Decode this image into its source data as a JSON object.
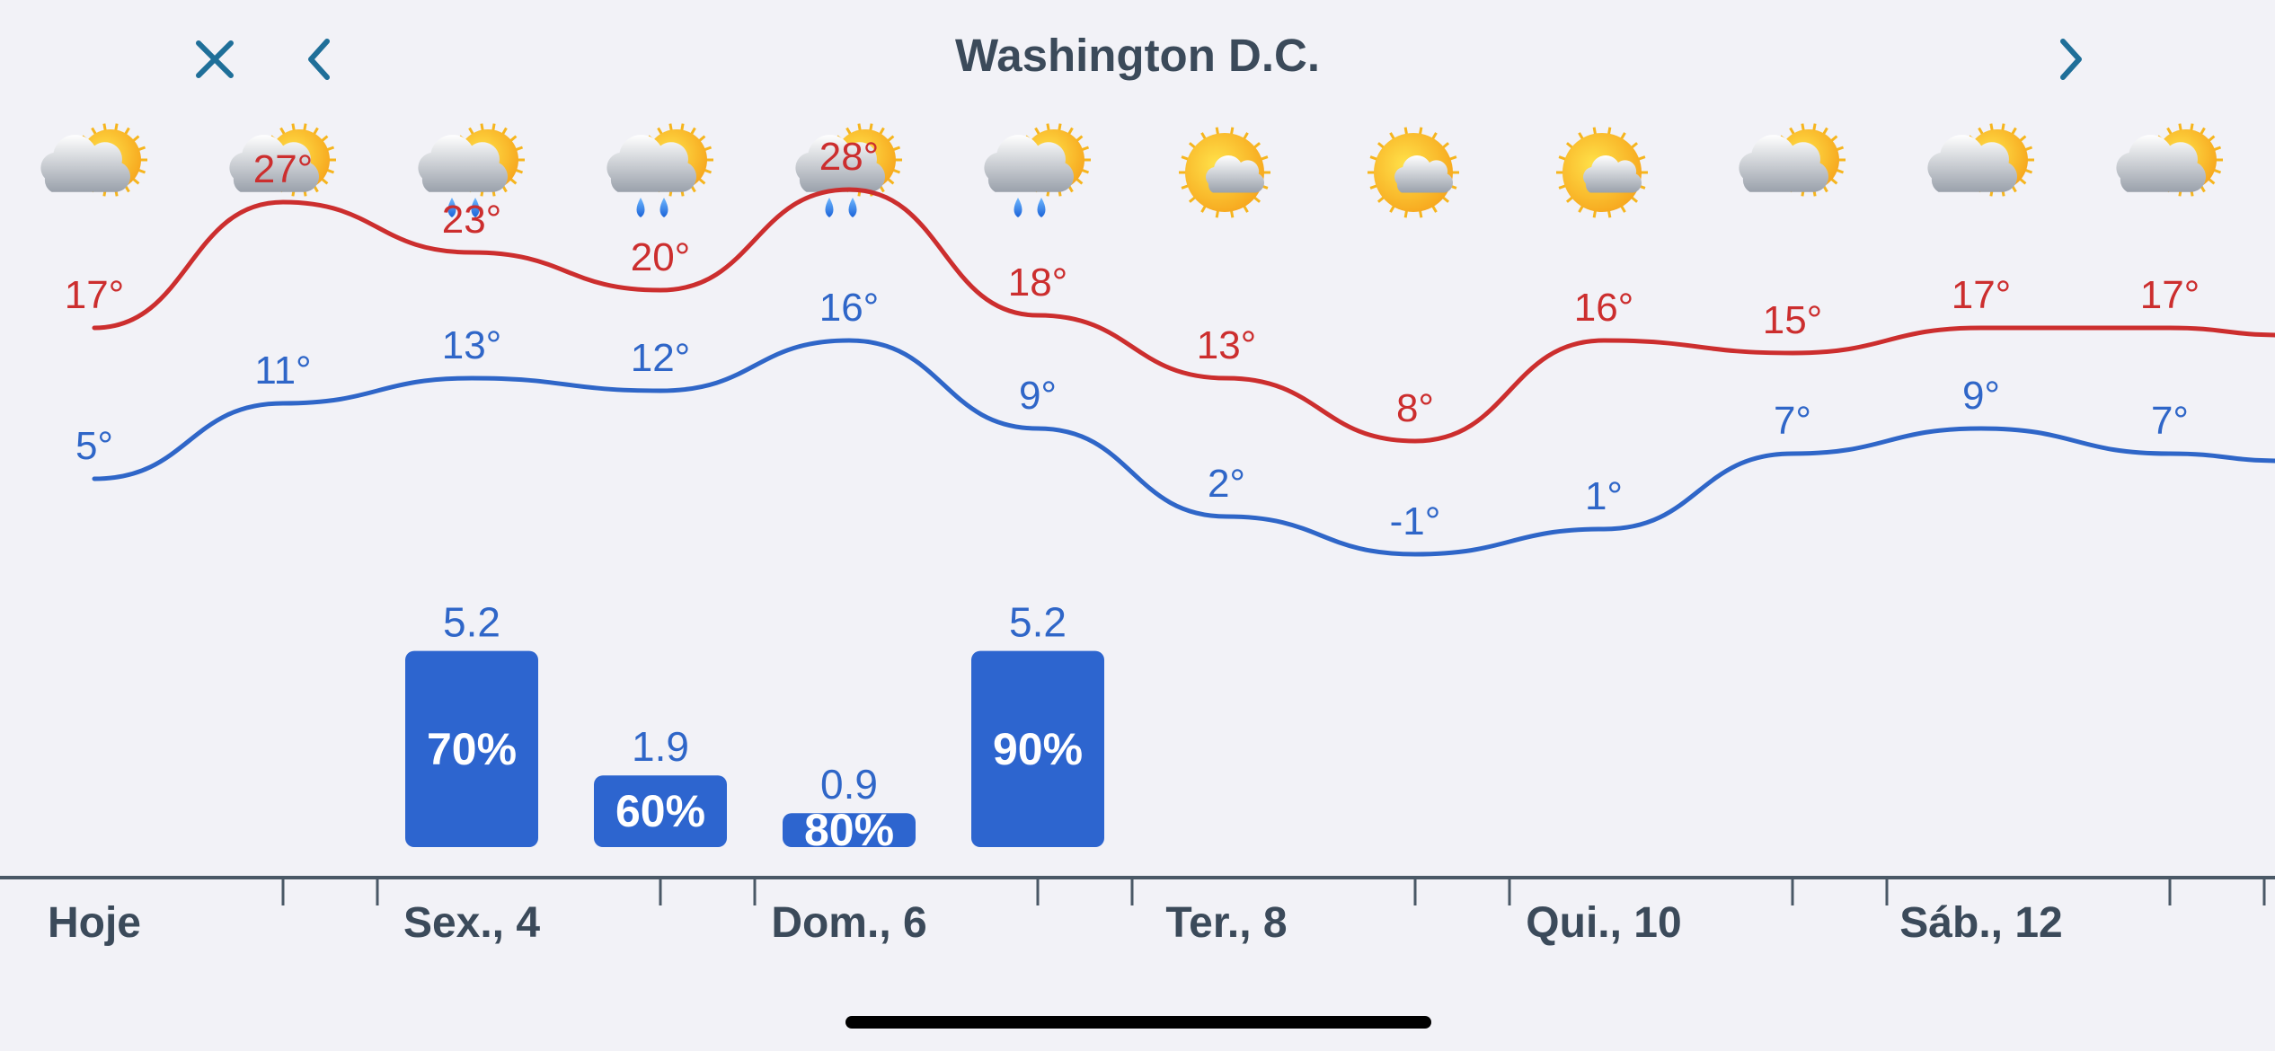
{
  "header": {
    "title": "Washington D.C.",
    "close_icon": "close-icon",
    "prev_icon": "chevron-left-icon",
    "next_icon": "chevron-right-icon"
  },
  "colors": {
    "background": "#f2f2f7",
    "accent": "#1f6f99",
    "high": "#cc2e2e",
    "low": "#2f66c8",
    "bar": "#2d65cf",
    "axis": "#4a5866",
    "day_label": "#3b4a5a"
  },
  "chart_data": {
    "type": "line",
    "icons": [
      "partly-cloudy-icon",
      "partly-cloudy-icon",
      "rain-icon",
      "rain-icon",
      "rain-icon",
      "rain-icon",
      "mostly-sunny-icon",
      "mostly-sunny-icon",
      "mostly-sunny-icon",
      "partly-cloudy-icon",
      "partly-cloudy-icon",
      "partly-cloudy-icon"
    ],
    "series": [
      {
        "key": "high",
        "values": [
          17,
          27,
          23,
          20,
          28,
          18,
          13,
          8,
          16,
          15,
          17,
          17
        ]
      },
      {
        "key": "low",
        "values": [
          5,
          11,
          13,
          12,
          16,
          9,
          2,
          -1,
          1,
          7,
          9,
          7
        ]
      }
    ],
    "high_labels": [
      "17°",
      "27°",
      "23°",
      "20°",
      "28°",
      "18°",
      "13°",
      "8°",
      "16°",
      "15°",
      "17°",
      "17°"
    ],
    "low_labels": [
      "5°",
      "11°",
      "13°",
      "12°",
      "16°",
      "9°",
      "2°",
      "-1°",
      "1°",
      "7°",
      "9°",
      "7°"
    ],
    "precipitation": [
      {
        "slot": 2,
        "amount": 5.2,
        "amount_label": "5.2",
        "chance_label": "70%"
      },
      {
        "slot": 3,
        "amount": 1.9,
        "amount_label": "1.9",
        "chance_label": "60%"
      },
      {
        "slot": 4,
        "amount": 0.9,
        "amount_label": "0.9",
        "chance_label": "80%"
      },
      {
        "slot": 5,
        "amount": 5.2,
        "amount_label": "5.2",
        "chance_label": "90%"
      }
    ],
    "day_labels": [
      {
        "slot": 0,
        "text": "Hoje"
      },
      {
        "slot": 2,
        "text": "Sex., 4"
      },
      {
        "slot": 4,
        "text": "Dom., 6"
      },
      {
        "slot": 6,
        "text": "Ter., 8"
      },
      {
        "slot": 8,
        "text": "Qui., 10"
      },
      {
        "slot": 10,
        "text": "Sáb., 12"
      }
    ]
  }
}
